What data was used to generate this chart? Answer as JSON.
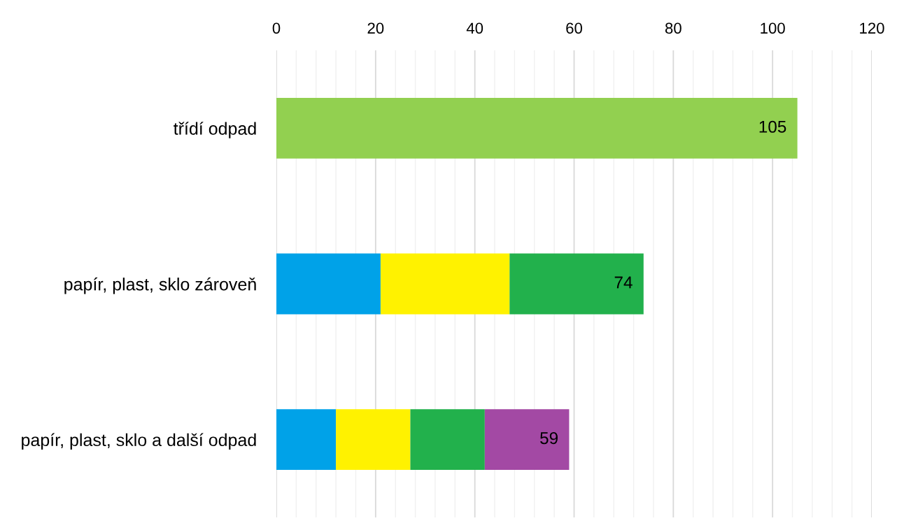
{
  "chart_data": {
    "type": "bar",
    "orientation": "horizontal",
    "stacked": true,
    "categories": [
      "třídí odpad",
      "papír, plast, sklo zároveň",
      "papír, plast, sklo a další odpad"
    ],
    "series": [
      {
        "color": "#92d050",
        "values": [
          105,
          null,
          null
        ]
      },
      {
        "color": "#00a2e8",
        "values": [
          null,
          21,
          12
        ]
      },
      {
        "color": "#fff200",
        "values": [
          null,
          26,
          15
        ]
      },
      {
        "color": "#22b14c",
        "values": [
          null,
          27,
          15
        ]
      },
      {
        "color": "#a349a4",
        "values": [
          null,
          null,
          17
        ]
      }
    ],
    "xlim": [
      0,
      120
    ],
    "xticks": [
      0,
      {
        "value": 4,
        "label": null
      },
      {
        "value": 8,
        "label": null
      },
      {
        "value": 12,
        "label": null
      },
      {
        "value": 16,
        "label": null
      },
      20,
      {
        "value": 24,
        "label": null
      },
      {
        "value": 28,
        "label": null
      },
      {
        "value": 32,
        "label": null
      },
      {
        "value": 36,
        "label": null
      },
      40,
      {
        "value": 44,
        "label": null
      },
      {
        "value": 48,
        "label": null
      },
      {
        "value": 52,
        "label": null
      },
      {
        "value": 56,
        "label": null
      },
      60,
      {
        "value": 64,
        "label": null
      },
      {
        "value": 68,
        "label": null
      },
      {
        "value": 72,
        "label": null
      },
      {
        "value": 76,
        "label": null
      },
      80,
      {
        "value": 84,
        "label": null
      },
      {
        "value": 88,
        "label": null
      },
      {
        "value": 92,
        "label": null
      },
      {
        "value": 96,
        "label": null
      },
      100,
      {
        "value": 104,
        "label": null
      },
      {
        "value": 108,
        "label": null
      },
      {
        "value": 112,
        "label": null
      },
      {
        "value": 116,
        "label": null
      },
      120
    ],
    "grid": "x",
    "totals": [
      "105",
      "74",
      "59"
    ]
  }
}
